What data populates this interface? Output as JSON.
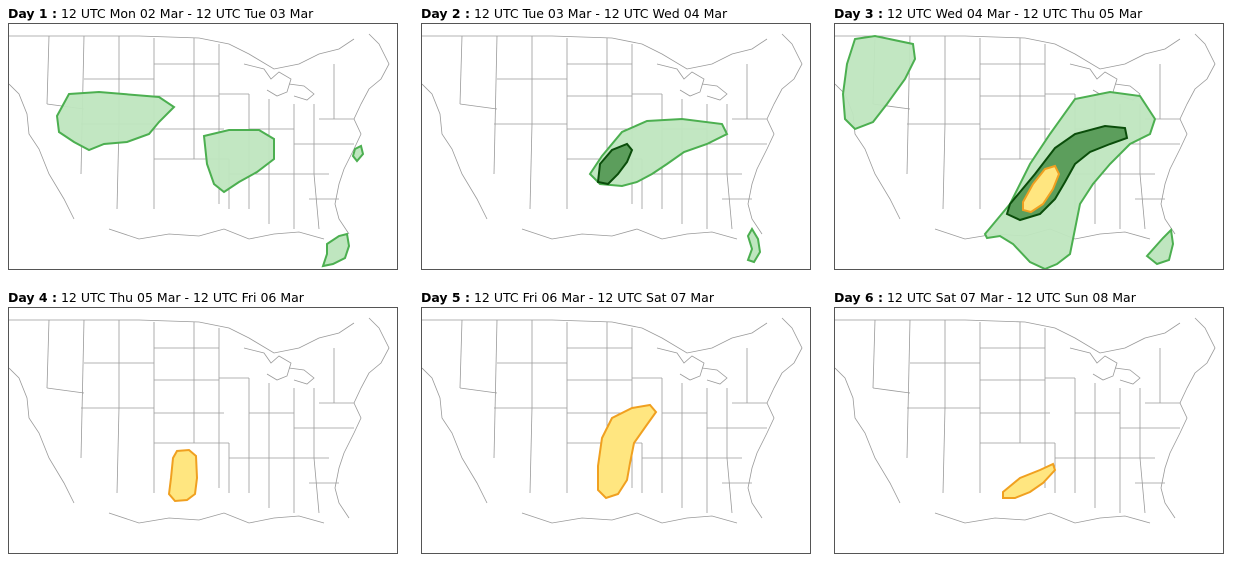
{
  "panels": [
    {
      "day_label": "Day 1 :",
      "period": "12 UTC Mon 02 Mar - 12 UTC Tue 03 Mar"
    },
    {
      "day_label": "Day 2 :",
      "period": "12 UTC Tue 03 Mar - 12 UTC Wed 04 Mar"
    },
    {
      "day_label": "Day 3 :",
      "period": "12 UTC Wed 04 Mar - 12 UTC Thu 05 Mar"
    },
    {
      "day_label": "Day 4 :",
      "period": "12 UTC Thu 05 Mar - 12 UTC Fri 06 Mar"
    },
    {
      "day_label": "Day 5 :",
      "period": "12 UTC Fri 06 Mar - 12 UTC Sat 07 Mar"
    },
    {
      "day_label": "Day 6 :",
      "period": "12 UTC Sat 07 Mar - 12 UTC Sun 08 Mar"
    }
  ],
  "colors": {
    "light_green_fill": "#bfe6bf",
    "light_green_stroke": "#4caf50",
    "dark_green_fill": "#5c9e5c",
    "dark_green_stroke": "#0a4d0a",
    "yellow_fill": "#ffe680",
    "yellow_stroke": "#f0a020"
  }
}
